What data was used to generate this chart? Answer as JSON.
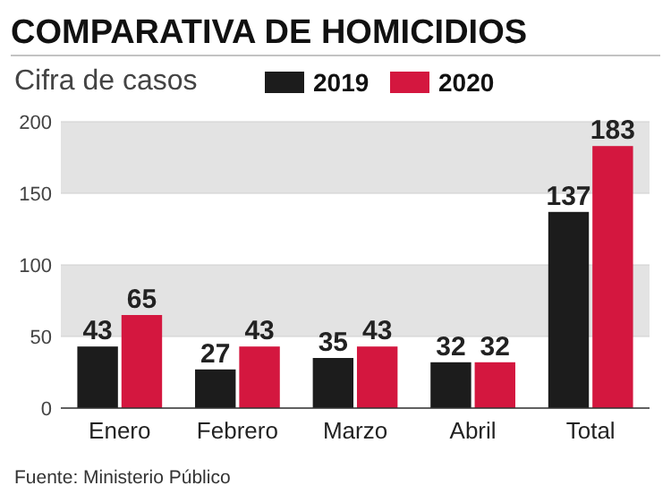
{
  "chart_data": {
    "type": "bar",
    "title": "COMPARATIVA DE HOMICIDIOS",
    "subtitle": "Cifra de casos",
    "categories": [
      "Enero",
      "Febrero",
      "Marzo",
      "Abril",
      "Total"
    ],
    "series": [
      {
        "name": "2019",
        "color": "#1c1c1c",
        "values": [
          43,
          27,
          35,
          32,
          137
        ]
      },
      {
        "name": "2020",
        "color": "#d4173f",
        "values": [
          65,
          43,
          43,
          32,
          183
        ]
      }
    ],
    "ylim": [
      0,
      200
    ],
    "yticks": [
      0,
      50,
      100,
      150,
      200
    ],
    "grid": "y",
    "bands": [
      {
        "axis": "y",
        "from": 50,
        "to": 100,
        "color": "#e3e3e3"
      },
      {
        "axis": "y",
        "from": 150,
        "to": 200,
        "color": "#e3e3e3"
      }
    ],
    "data_labels": true,
    "legend": "top right",
    "annotations": [
      "Fuente: Ministerio Público"
    ]
  }
}
